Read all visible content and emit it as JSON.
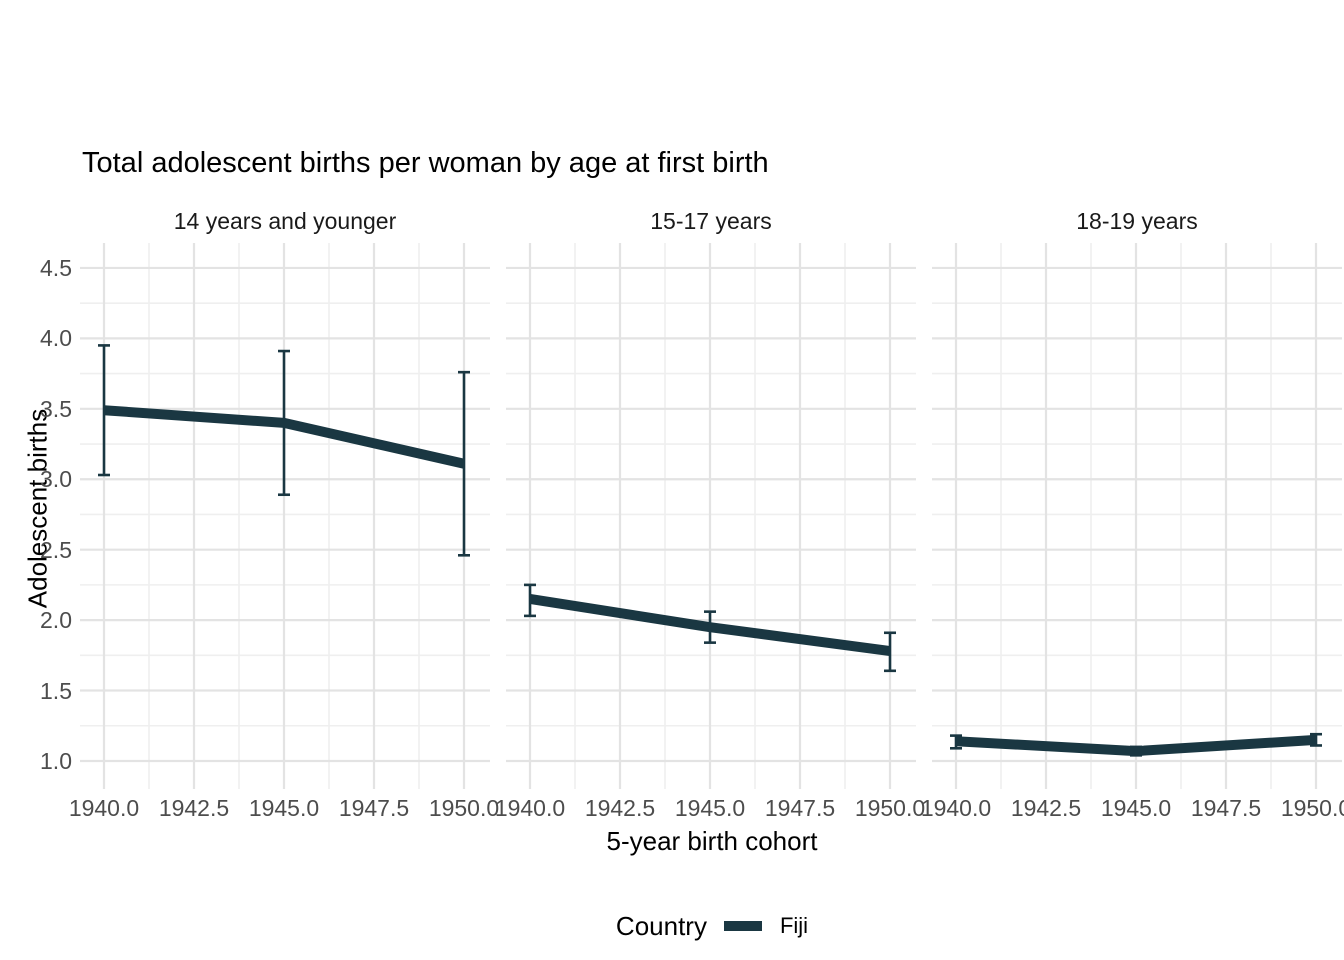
{
  "title": "Total adolescent births per woman by age at first birth",
  "axes": {
    "x_title": "5-year birth cohort",
    "y_title": "Adolescent births",
    "x_tick_labels": [
      "1940.0",
      "1942.5",
      "1945.0",
      "1947.5",
      "1950.0"
    ],
    "y_tick_labels": [
      "1.0",
      "1.5",
      "2.0",
      "2.5",
      "3.0",
      "3.5",
      "4.0",
      "4.5"
    ]
  },
  "legend": {
    "title": "Country",
    "items": [
      {
        "label": "Fiji",
        "color": "#1a3742"
      }
    ]
  },
  "chart_data": {
    "type": "line",
    "title": "Total adolescent births per woman by age at first birth",
    "xlabel": "5-year birth cohort",
    "ylabel": "Adolescent births",
    "series_name": "Fiji",
    "facets": [
      {
        "label": "14 years and younger",
        "x": [
          1940,
          1945,
          1950
        ],
        "y": [
          3.49,
          3.4,
          3.11
        ],
        "ymin": [
          3.03,
          2.89,
          2.46
        ],
        "ymax": [
          3.95,
          3.91,
          3.76
        ]
      },
      {
        "label": "15-17 years",
        "x": [
          1940,
          1945,
          1950
        ],
        "y": [
          2.15,
          1.95,
          1.78
        ],
        "ymin": [
          2.03,
          1.84,
          1.64
        ],
        "ymax": [
          2.25,
          2.06,
          1.91
        ]
      },
      {
        "label": "18-19 years",
        "x": [
          1940,
          1945,
          1950
        ],
        "y": [
          1.14,
          1.07,
          1.15
        ],
        "ymin": [
          1.09,
          1.04,
          1.11
        ],
        "ymax": [
          1.18,
          1.1,
          1.19
        ]
      }
    ],
    "x_major_ticks": [
      1940,
      1942.5,
      1945,
      1947.5,
      1950
    ],
    "x_minor_ticks": [
      1941.25,
      1943.75,
      1946.25,
      1948.75
    ],
    "y_major_ticks": [
      1.0,
      1.5,
      2.0,
      2.5,
      3.0,
      3.5,
      4.0,
      4.5
    ],
    "y_minor_ticks": [
      1.25,
      1.75,
      2.25,
      2.75,
      3.25,
      3.75,
      4.25
    ],
    "xlim": [
      1939.333,
      1950.722
    ],
    "ylim": [
      0.801,
      4.677
    ],
    "grid": true,
    "legend_position": "bottom",
    "colors": {
      "series": "#1a3742",
      "grid_major": "#e3e3e3",
      "grid_minor": "#efefef",
      "tick_text": "#4d4d4d",
      "background": "#ffffff"
    }
  }
}
